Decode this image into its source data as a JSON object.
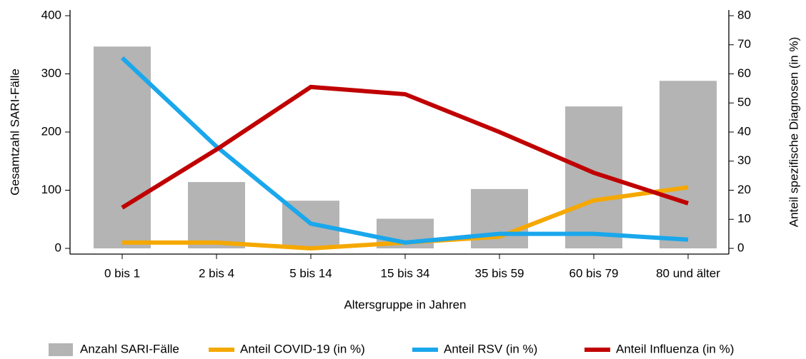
{
  "chart_data": {
    "type": "bar",
    "x_label": "Altersgruppe in Jahren",
    "y_label": "Gesamtzahl SARI-Fälle",
    "y2_label": "Anteil spezifische Diagnosen (in %)",
    "categories": [
      "0 bis 1",
      "2 bis 4",
      "5 bis 14",
      "15 bis 34",
      "35 bis 59",
      "60 bis 79",
      "80 und älter"
    ],
    "ylim": [
      0,
      400
    ],
    "yticks": [
      0,
      100,
      200,
      300,
      400
    ],
    "y2lim": [
      0,
      80
    ],
    "y2ticks": [
      0,
      10,
      20,
      30,
      40,
      50,
      60,
      70,
      80
    ],
    "series": [
      {
        "name": "Anzahl SARI-Fälle",
        "type": "bar",
        "color": "#b4b4b4",
        "values": [
          347,
          114,
          82,
          51,
          102,
          244,
          288
        ]
      },
      {
        "name": "Anteil COVID-19 (in %)",
        "type": "line",
        "axis": "y2",
        "color": "#f5a800",
        "values": [
          2,
          2,
          0,
          2,
          4,
          16.5,
          21
        ]
      },
      {
        "name": "Anteil RSV (in %)",
        "type": "line",
        "axis": "y2",
        "color": "#1aa7ec",
        "values": [
          65.5,
          35,
          8.5,
          2,
          5,
          5,
          3
        ]
      },
      {
        "name": "Anteil Influenza (in %)",
        "type": "line",
        "axis": "y2",
        "color": "#c00000",
        "values": [
          14,
          34,
          55.5,
          53,
          40,
          26,
          15.5
        ]
      }
    ]
  }
}
